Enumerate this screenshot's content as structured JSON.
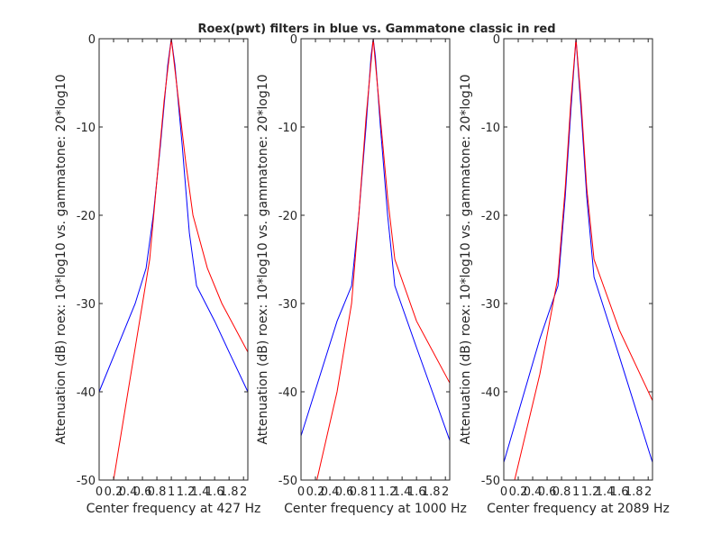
{
  "title": "Roex(pwt) filters in blue vs. Gammatone classic in red",
  "colors": {
    "roex": "#0000ff",
    "gammatone": "#ff0000",
    "axis": "#262626"
  },
  "chart_data": [
    {
      "type": "line",
      "xlabel": "Center frequency at 427 Hz",
      "ylabel": "Attenuation (dB) roex: 10*log10 vs. gammatone: 20*log10",
      "xlim": [
        0,
        2.06
      ],
      "ylim": [
        -50,
        0
      ],
      "xticks": [
        0,
        0.2,
        0.4,
        0.6,
        0.8,
        1,
        1.2,
        1.4,
        1.6,
        1.8,
        2
      ],
      "xtick_labels": [
        "0",
        "0.2",
        "0.4",
        "0.6",
        "0.8",
        "1",
        "1.2",
        "1.4",
        "1.6",
        "1.8",
        "2"
      ],
      "yticks": [
        -50,
        -40,
        -30,
        -20,
        -10,
        0
      ],
      "ytick_labels": [
        "-50",
        "-40",
        "-30",
        "-20",
        "-10",
        "0"
      ],
      "series": [
        {
          "name": "roex",
          "color": "#0000ff",
          "x": [
            0,
            0.3,
            0.5,
            0.65,
            0.75,
            0.85,
            0.95,
            1,
            1.05,
            1.15,
            1.25,
            1.35,
            1.6,
            1.8,
            2.06
          ],
          "y": [
            -40,
            -34,
            -30,
            -26,
            -20,
            -12,
            -3,
            0,
            -3,
            -12,
            -22,
            -28,
            -32,
            -35.5,
            -40
          ]
        },
        {
          "name": "gammatone",
          "color": "#ff0000",
          "x": [
            0.2,
            0.4,
            0.6,
            0.7,
            0.8,
            0.9,
            1,
            1.1,
            1.2,
            1.3,
            1.5,
            1.7,
            2.06
          ],
          "y": [
            -50,
            -40,
            -30,
            -25,
            -16,
            -7,
            0,
            -7,
            -14,
            -20,
            -26,
            -30,
            -35.5
          ]
        }
      ]
    },
    {
      "type": "line",
      "xlabel": "Center frequency at 1000 Hz",
      "ylabel": "Attenuation (dB) roex: 10*log10 vs. gammatone: 20*log10",
      "xlim": [
        0,
        2.06
      ],
      "ylim": [
        -50,
        0
      ],
      "xticks": [
        0,
        0.2,
        0.4,
        0.6,
        0.8,
        1,
        1.2,
        1.4,
        1.6,
        1.8,
        2
      ],
      "xtick_labels": [
        "0",
        "0.2",
        "0.4",
        "0.6",
        "0.8",
        "1",
        "1.2",
        "1.4",
        "1.6",
        "1.8",
        "2"
      ],
      "yticks": [
        -50,
        -40,
        -30,
        -20,
        -10,
        0
      ],
      "ytick_labels": [
        "-50",
        "-40",
        "-30",
        "-20",
        "-10",
        "0"
      ],
      "series": [
        {
          "name": "roex",
          "color": "#0000ff",
          "x": [
            0,
            0.5,
            0.7,
            0.8,
            0.9,
            0.97,
            1,
            1.03,
            1.1,
            1.2,
            1.3,
            1.6,
            2.06
          ],
          "y": [
            -45,
            -32,
            -28,
            -20,
            -10,
            -2,
            0,
            -2,
            -10,
            -20,
            -28,
            -35,
            -45.5
          ]
        },
        {
          "name": "gammatone",
          "color": "#ff0000",
          "x": [
            0.22,
            0.5,
            0.7,
            0.8,
            0.9,
            1,
            1.1,
            1.2,
            1.3,
            1.6,
            2.06
          ],
          "y": [
            -50,
            -40,
            -30,
            -20,
            -9,
            0,
            -9,
            -18,
            -25,
            -32,
            -39
          ]
        }
      ]
    },
    {
      "type": "line",
      "xlabel": "Center frequency at 2089 Hz",
      "ylabel": "Attenuation (dB) roex: 10*log10 vs. gammatone: 20*log10",
      "xlim": [
        0,
        2.06
      ],
      "ylim": [
        -50,
        0
      ],
      "xticks": [
        0,
        0.2,
        0.4,
        0.6,
        0.8,
        1,
        1.2,
        1.4,
        1.6,
        1.8,
        2
      ],
      "xtick_labels": [
        "0",
        "0.2",
        "0.4",
        "0.6",
        "0.8",
        "1",
        "1.2",
        "1.4",
        "1.6",
        "1.8",
        "2"
      ],
      "yticks": [
        -50,
        -40,
        -30,
        -20,
        -10,
        0
      ],
      "ytick_labels": [
        "-50",
        "-40",
        "-30",
        "-20",
        "-10",
        "0"
      ],
      "series": [
        {
          "name": "roex",
          "color": "#0000ff",
          "x": [
            0,
            0.5,
            0.75,
            0.85,
            0.93,
            1,
            1.07,
            1.15,
            1.25,
            1.6,
            2.06
          ],
          "y": [
            -48,
            -34,
            -28,
            -18,
            -8,
            0,
            -8,
            -18,
            -27,
            -36,
            -48
          ]
        },
        {
          "name": "gammatone",
          "color": "#ff0000",
          "x": [
            0.15,
            0.5,
            0.75,
            0.85,
            0.93,
            1,
            1.07,
            1.15,
            1.25,
            1.6,
            2.06
          ],
          "y": [
            -50,
            -38,
            -27,
            -17,
            -7,
            0,
            -7,
            -17,
            -25,
            -33,
            -41
          ]
        }
      ]
    }
  ]
}
